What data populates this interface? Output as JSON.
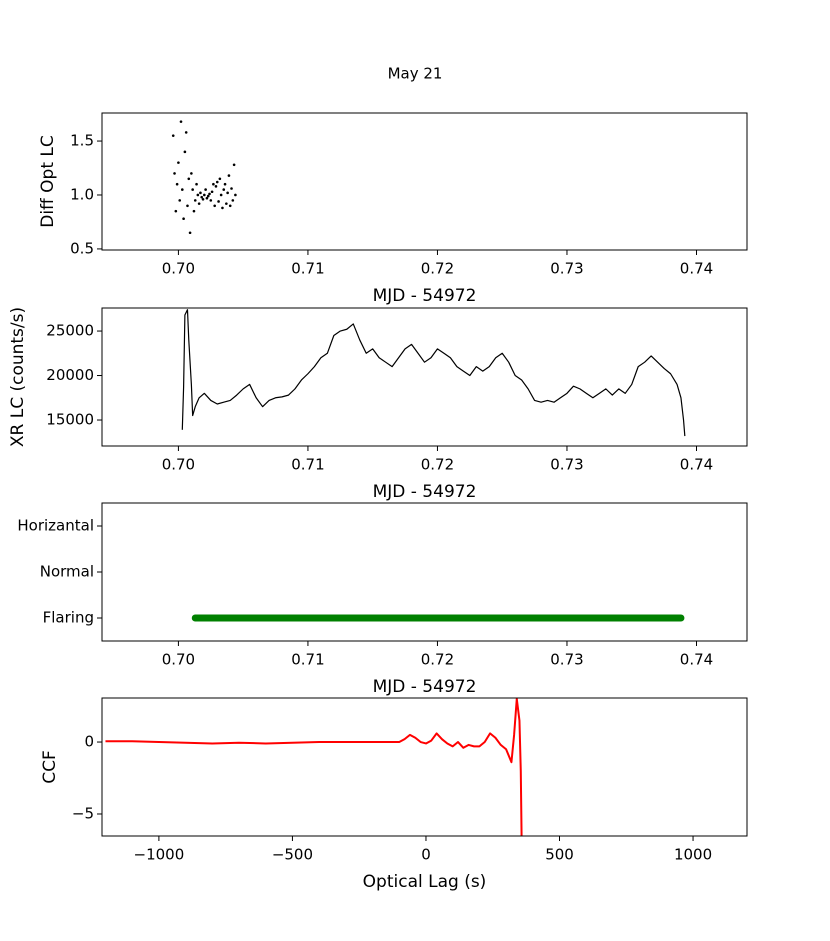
{
  "title": "May 21",
  "chart_data": [
    {
      "type": "scatter",
      "xlabel": "MJD - 54972",
      "ylabel": "Diff Opt LC",
      "color": "#000000",
      "x": [
        0.6996,
        0.6997,
        0.6998,
        0.6999,
        0.7,
        0.7001,
        0.7002,
        0.7003,
        0.7004,
        0.7005,
        0.7006,
        0.7007,
        0.7008,
        0.7009,
        0.701,
        0.7011,
        0.7012,
        0.7013,
        0.7014,
        0.7015,
        0.7016,
        0.7017,
        0.7018,
        0.7019,
        0.702,
        0.7021,
        0.7022,
        0.7023,
        0.7024,
        0.7025,
        0.7026,
        0.7027,
        0.7028,
        0.7029,
        0.703,
        0.7031,
        0.7032,
        0.7033,
        0.7034,
        0.7035,
        0.7036,
        0.7037,
        0.7038,
        0.7039,
        0.704,
        0.7041,
        0.7042,
        0.7043,
        0.7044
      ],
      "values": [
        1.55,
        1.2,
        0.85,
        1.1,
        1.3,
        0.95,
        1.68,
        1.05,
        0.78,
        1.4,
        1.58,
        0.9,
        1.15,
        0.65,
        1.2,
        1.05,
        0.85,
        0.95,
        1.1,
        1.0,
        0.92,
        1.02,
        0.98,
        0.96,
        1.0,
        1.05,
        0.97,
        0.99,
        1.01,
        0.95,
        1.03,
        1.1,
        0.9,
        1.08,
        1.12,
        0.94,
        1.15,
        1.0,
        0.88,
        1.05,
        1.1,
        0.92,
        1.02,
        1.18,
        0.9,
        1.06,
        0.95,
        1.28,
        1.0
      ],
      "xlim": [
        0.6941,
        0.7439
      ],
      "ylim": [
        0.49,
        1.76
      ],
      "xticks": [
        {
          "value": 0.7,
          "label": "0.70"
        },
        0.71,
        0.72,
        0.73,
        0.74
      ],
      "yticks": [
        0.5,
        {
          "value": 1,
          "label": "1.0"
        },
        1.5
      ]
    },
    {
      "type": "line",
      "xlabel": "MJD - 54972",
      "ylabel": "XR LC (counts/s)",
      "color": "#000000",
      "x": [
        0.7003,
        0.7004,
        0.7005,
        0.7007,
        0.7008,
        0.701,
        0.7011,
        0.7013,
        0.7016,
        0.702,
        0.7025,
        0.703,
        0.7035,
        0.704,
        0.7045,
        0.705,
        0.7055,
        0.706,
        0.7065,
        0.707,
        0.7075,
        0.708,
        0.7085,
        0.709,
        0.7095,
        0.71,
        0.7105,
        0.711,
        0.7115,
        0.712,
        0.7125,
        0.713,
        0.7135,
        0.714,
        0.7145,
        0.715,
        0.7155,
        0.716,
        0.7165,
        0.717,
        0.7175,
        0.718,
        0.7185,
        0.719,
        0.7195,
        0.72,
        0.7205,
        0.721,
        0.7215,
        0.722,
        0.7225,
        0.723,
        0.7235,
        0.724,
        0.7245,
        0.725,
        0.7255,
        0.726,
        0.7265,
        0.727,
        0.7275,
        0.728,
        0.7285,
        0.729,
        0.7295,
        0.73,
        0.7305,
        0.731,
        0.7315,
        0.732,
        0.7325,
        0.733,
        0.7335,
        0.734,
        0.7345,
        0.735,
        0.7355,
        0.736,
        0.7365,
        0.737,
        0.7375,
        0.738,
        0.7385,
        0.7388,
        0.739,
        0.7391
      ],
      "values": [
        13900,
        18700,
        26800,
        27400,
        24000,
        19000,
        15500,
        16500,
        17500,
        18000,
        17200,
        16800,
        17000,
        17200,
        17800,
        18500,
        19000,
        17500,
        16500,
        17200,
        17500,
        17600,
        17800,
        18500,
        19500,
        20200,
        21000,
        22000,
        22500,
        24500,
        25000,
        25200,
        25800,
        24000,
        22500,
        23000,
        22000,
        21500,
        21000,
        22000,
        23000,
        23500,
        22500,
        21500,
        22000,
        23000,
        22500,
        22000,
        21000,
        20500,
        20000,
        21000,
        20500,
        21000,
        22000,
        22500,
        21500,
        20000,
        19500,
        18500,
        17200,
        17000,
        17200,
        17000,
        17500,
        18000,
        18800,
        18500,
        18000,
        17500,
        18000,
        18500,
        17800,
        18500,
        18000,
        19000,
        21000,
        21500,
        22200,
        21500,
        20800,
        20200,
        19000,
        17500,
        15000,
        13200
      ],
      "xlim": [
        0.6941,
        0.7439
      ],
      "ylim": [
        12080,
        27590
      ],
      "xticks": [
        {
          "value": 0.7,
          "label": "0.70"
        },
        0.71,
        0.72,
        0.73,
        0.74
      ],
      "yticks": [
        15000,
        20000,
        25000
      ]
    },
    {
      "type": "state",
      "xlabel": "MJD - 54972",
      "color": "#008000",
      "x": [
        0.7013,
        0.7088,
        0.7163,
        0.7238,
        0.7313,
        0.7388
      ],
      "values": [
        "Flaring",
        "Flaring",
        "Flaring",
        "Flaring",
        "Flaring",
        "Flaring"
      ],
      "y_categories": [
        "Flaring",
        "Normal",
        "Horizantal"
      ],
      "xlim": [
        0.6941,
        0.7439
      ],
      "xticks": [
        {
          "value": 0.7,
          "label": "0.70"
        },
        0.71,
        0.72,
        0.73,
        0.74
      ]
    },
    {
      "type": "line",
      "xlabel": "Optical Lag (s)",
      "ylabel": "CCF",
      "color": "#ff0000",
      "x": [
        -1200,
        -1100,
        -1000,
        -900,
        -800,
        -700,
        -600,
        -500,
        -400,
        -300,
        -200,
        -100,
        -80,
        -60,
        -40,
        -20,
        0,
        20,
        40,
        60,
        80,
        100,
        120,
        140,
        160,
        180,
        200,
        220,
        240,
        260,
        280,
        300,
        320,
        330,
        340,
        350,
        355,
        358
      ],
      "values": [
        0.05,
        0.05,
        0.0,
        -0.05,
        -0.1,
        -0.05,
        -0.1,
        -0.05,
        0.0,
        0.0,
        0.0,
        0.0,
        0.2,
        0.5,
        0.3,
        0.0,
        -0.1,
        0.1,
        0.6,
        0.2,
        -0.1,
        -0.3,
        0.0,
        -0.4,
        -0.2,
        -0.3,
        -0.3,
        0.0,
        0.6,
        0.3,
        -0.2,
        -0.5,
        -1.4,
        0.5,
        3.0,
        1.5,
        -2.0,
        -6.5
      ],
      "xlim": [
        -1213,
        1202
      ],
      "ylim": [
        -6.53,
        3.06
      ],
      "xticks": [
        {
          "value": -1000,
          "label": "−1000"
        },
        {
          "value": -500,
          "label": "−500"
        },
        0,
        500,
        1000
      ],
      "yticks": [
        {
          "value": -5,
          "label": "−5"
        },
        0
      ]
    }
  ]
}
